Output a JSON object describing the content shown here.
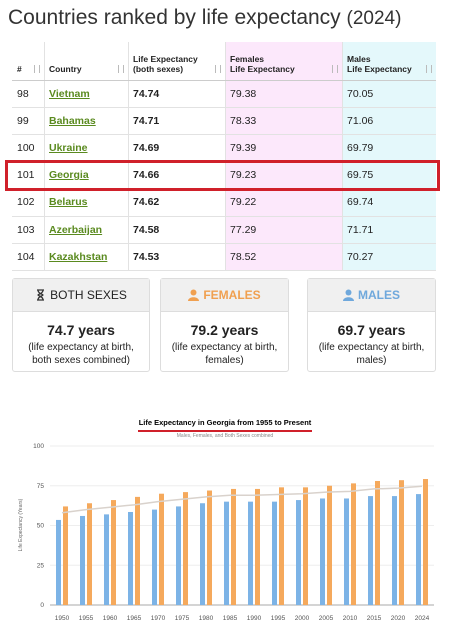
{
  "header": {
    "title": "Countries ranked by life expectancy",
    "year": "(2024)"
  },
  "table": {
    "columns": [
      [
        "#"
      ],
      [
        "Country"
      ],
      [
        "Life Expectancy",
        "(both sexes)"
      ],
      [
        "Females",
        "Life Expectancy"
      ],
      [
        "Males",
        "Life Expectancy"
      ]
    ],
    "rows": [
      [
        98,
        "Vietnam",
        74.74,
        79.38,
        70.05
      ],
      [
        99,
        "Bahamas",
        74.71,
        78.33,
        71.06
      ],
      [
        100,
        "Ukraine",
        74.69,
        79.39,
        69.79
      ],
      [
        101,
        "Georgia",
        74.66,
        79.23,
        69.75
      ],
      [
        102,
        "Belarus",
        74.62,
        79.22,
        69.74
      ],
      [
        103,
        "Azerbaijan",
        74.58,
        77.29,
        71.71
      ],
      [
        104,
        "Kazakhstan",
        74.53,
        78.52,
        70.27
      ]
    ]
  },
  "cards": [
    {
      "title": "BOTH SEXES",
      "value": "74.7 years",
      "description": "(life expectancy at birth, both sexes combined)"
    },
    {
      "title": "FEMALES",
      "value": "79.2 years",
      "description": "(life expectancy at birth, females)"
    },
    {
      "title": "MALES",
      "value": "69.7 years",
      "description": "(life expectancy at birth, males)"
    }
  ],
  "chart_data": {
    "type": "bar",
    "title": "Life Expectancy in Georgia from 1955 to Present",
    "subtitle": "Males, Females, and Both Sexes combined",
    "y_label": "Life Expectancy (Years)",
    "categories": [
      "1950",
      "1955",
      "1960",
      "1965",
      "1970",
      "1975",
      "1980",
      "1985",
      "1990",
      "1995",
      "2000",
      "2005",
      "2010",
      "2015",
      "2020",
      "2024"
    ],
    "series": [
      {
        "type": "bar",
        "color": "#7cb3e6",
        "values": [
          53.5,
          56,
          57,
          58.5,
          60,
          62,
          64,
          65,
          65,
          65,
          66,
          67,
          67,
          68.5,
          68.5,
          69.75
        ]
      },
      {
        "type": "bar",
        "color": "#f5a95c",
        "values": [
          62,
          64,
          66,
          68,
          70,
          71,
          72,
          73,
          73,
          74,
          74,
          75,
          76.5,
          78,
          78.5,
          79.23
        ]
      },
      {
        "type": "line",
        "color": "#d9d2cc",
        "values": [
          58,
          60,
          61.5,
          63,
          65,
          66.5,
          68,
          69,
          69,
          69.5,
          70,
          71,
          71.5,
          73,
          73.5,
          74.66
        ]
      }
    ],
    "ylim": [
      0,
      100
    ],
    "yticks": [
      0,
      25,
      50,
      75,
      100
    ],
    "grid": true
  }
}
